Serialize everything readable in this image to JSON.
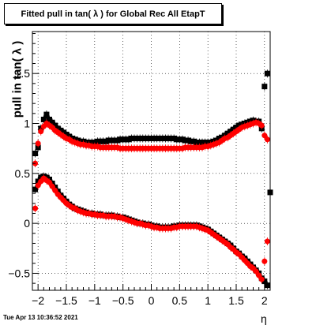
{
  "title": "Fitted pull in tan( λ ) for Global Rec All EtapT",
  "ylabel": "pull in tan( λ )",
  "xlabel": "η",
  "timestamp": "Tue Apr 13 10:36:52 2021",
  "chart_data": {
    "type": "scatter",
    "title": "Fitted pull in tan( λ ) for Global Rec All EtapT",
    "xlabel": "η",
    "ylabel": "pull in tan( λ )",
    "xlim": [
      -2.1,
      2.1
    ],
    "ylim": [
      -0.67,
      1.92
    ],
    "grid": true,
    "x_ticks": [
      -2,
      -1.5,
      -1,
      -0.5,
      0,
      0.5,
      1,
      1.5,
      2
    ],
    "x_tick_labels": [
      "−2",
      "−1.5",
      "−1",
      "−0.5",
      "0",
      "0.5",
      "1",
      "1.5",
      "2"
    ],
    "y_ticks": [
      -0.5,
      0,
      0.5,
      1,
      1.5
    ],
    "y_tick_labels": [
      "−0.5",
      "0",
      "0.5",
      "1",
      "1.5"
    ],
    "colors": {
      "black_series": "#000000",
      "red_series": "#ff0000"
    },
    "series": [
      {
        "color": "black",
        "marker": "square",
        "x": [
          -2.05,
          -2.0,
          -1.95,
          -1.9,
          -1.85,
          -1.8,
          -1.75,
          -1.7,
          -1.65,
          -1.6,
          -1.55,
          -1.5,
          -1.45,
          -1.4,
          -1.35,
          -1.3,
          -1.25,
          -1.2,
          -1.15,
          -1.1,
          -1.05,
          -1.0,
          -0.95,
          -0.9,
          -0.85,
          -0.8,
          -0.75,
          -0.7,
          -0.65,
          -0.6,
          -0.55,
          -0.5,
          -0.45,
          -0.4,
          -0.35,
          -0.3,
          -0.25,
          -0.2,
          -0.15,
          -0.1,
          -0.05,
          0.0,
          0.05,
          0.1,
          0.15,
          0.2,
          0.25,
          0.3,
          0.35,
          0.4,
          0.45,
          0.5,
          0.55,
          0.6,
          0.65,
          0.7,
          0.75,
          0.8,
          0.85,
          0.9,
          0.95,
          1.0,
          1.05,
          1.1,
          1.15,
          1.2,
          1.25,
          1.3,
          1.35,
          1.4,
          1.45,
          1.5,
          1.55,
          1.6,
          1.65,
          1.7,
          1.75,
          1.8,
          1.85,
          1.9,
          1.95,
          2.0,
          2.05
        ],
        "y": [
          0.7,
          0.76,
          0.95,
          1.04,
          1.09,
          1.04,
          1.01,
          0.98,
          0.95,
          0.93,
          0.91,
          0.89,
          0.87,
          0.85,
          0.84,
          0.83,
          0.82,
          0.82,
          0.81,
          0.81,
          0.81,
          0.81,
          0.82,
          0.82,
          0.82,
          0.82,
          0.83,
          0.83,
          0.83,
          0.83,
          0.84,
          0.84,
          0.84,
          0.84,
          0.85,
          0.85,
          0.85,
          0.85,
          0.85,
          0.85,
          0.85,
          0.85,
          0.85,
          0.85,
          0.85,
          0.85,
          0.85,
          0.85,
          0.85,
          0.85,
          0.84,
          0.84,
          0.84,
          0.83,
          0.83,
          0.82,
          0.82,
          0.81,
          0.81,
          0.81,
          0.81,
          0.81,
          0.81,
          0.82,
          0.83,
          0.85,
          0.86,
          0.88,
          0.9,
          0.92,
          0.94,
          0.96,
          0.98,
          0.99,
          1.0,
          1.01,
          1.02,
          1.03,
          1.02,
          1.02,
          0.95,
          1.37,
          1.5
        ]
      },
      {
        "color": "red",
        "marker": "circle",
        "x": [
          -2.05,
          -2.0,
          -1.95,
          -1.9,
          -1.85,
          -1.8,
          -1.75,
          -1.7,
          -1.65,
          -1.6,
          -1.55,
          -1.5,
          -1.45,
          -1.4,
          -1.35,
          -1.3,
          -1.25,
          -1.2,
          -1.15,
          -1.1,
          -1.05,
          -1.0,
          -0.95,
          -0.9,
          -0.85,
          -0.8,
          -0.75,
          -0.7,
          -0.65,
          -0.6,
          -0.55,
          -0.5,
          -0.45,
          -0.4,
          -0.35,
          -0.3,
          -0.25,
          -0.2,
          -0.15,
          -0.1,
          -0.05,
          0.0,
          0.05,
          0.1,
          0.15,
          0.2,
          0.25,
          0.3,
          0.35,
          0.4,
          0.45,
          0.5,
          0.55,
          0.6,
          0.65,
          0.7,
          0.75,
          0.8,
          0.85,
          0.9,
          0.95,
          1.0,
          1.05,
          1.1,
          1.15,
          1.2,
          1.25,
          1.3,
          1.35,
          1.4,
          1.45,
          1.5,
          1.55,
          1.6,
          1.65,
          1.7,
          1.75,
          1.8,
          1.85,
          1.9,
          1.95,
          2.0,
          2.05
        ],
        "y": [
          0.6,
          0.8,
          0.92,
          0.97,
          1.0,
          0.98,
          0.96,
          0.93,
          0.91,
          0.89,
          0.87,
          0.85,
          0.84,
          0.82,
          0.81,
          0.8,
          0.79,
          0.79,
          0.78,
          0.78,
          0.77,
          0.77,
          0.77,
          0.76,
          0.76,
          0.76,
          0.76,
          0.76,
          0.76,
          0.76,
          0.75,
          0.75,
          0.75,
          0.75,
          0.75,
          0.75,
          0.75,
          0.75,
          0.75,
          0.75,
          0.75,
          0.75,
          0.75,
          0.75,
          0.75,
          0.75,
          0.75,
          0.75,
          0.75,
          0.75,
          0.75,
          0.75,
          0.75,
          0.76,
          0.76,
          0.76,
          0.76,
          0.76,
          0.76,
          0.76,
          0.77,
          0.77,
          0.78,
          0.79,
          0.8,
          0.81,
          0.83,
          0.85,
          0.86,
          0.88,
          0.9,
          0.92,
          0.94,
          0.96,
          0.97,
          0.98,
          0.99,
          1.0,
          1.01,
          1.0,
          0.98,
          0.88,
          0.84
        ]
      },
      {
        "color": "black",
        "marker": "square",
        "x": [
          -2.05,
          -2.0,
          -1.95,
          -1.9,
          -1.85,
          -1.8,
          -1.75,
          -1.7,
          -1.65,
          -1.6,
          -1.55,
          -1.5,
          -1.45,
          -1.4,
          -1.35,
          -1.3,
          -1.25,
          -1.2,
          -1.15,
          -1.1,
          -1.05,
          -1.0,
          -0.95,
          -0.9,
          -0.85,
          -0.8,
          -0.75,
          -0.7,
          -0.65,
          -0.6,
          -0.55,
          -0.5,
          -0.45,
          -0.4,
          -0.35,
          -0.3,
          -0.25,
          -0.2,
          -0.15,
          -0.1,
          -0.05,
          0.0,
          0.05,
          0.1,
          0.15,
          0.2,
          0.25,
          0.3,
          0.35,
          0.4,
          0.45,
          0.5,
          0.55,
          0.6,
          0.65,
          0.7,
          0.75,
          0.8,
          0.85,
          0.9,
          0.95,
          1.0,
          1.05,
          1.1,
          1.15,
          1.2,
          1.25,
          1.3,
          1.35,
          1.4,
          1.45,
          1.5,
          1.55,
          1.6,
          1.65,
          1.7,
          1.75,
          1.8,
          1.85,
          1.9,
          1.95,
          2.0,
          2.05,
          2.1
        ],
        "y": [
          0.34,
          0.42,
          0.46,
          0.47,
          0.46,
          0.44,
          0.4,
          0.36,
          0.32,
          0.28,
          0.25,
          0.22,
          0.19,
          0.17,
          0.15,
          0.14,
          0.13,
          0.12,
          0.11,
          0.1,
          0.1,
          0.09,
          0.09,
          0.09,
          0.08,
          0.08,
          0.08,
          0.08,
          0.07,
          0.07,
          0.06,
          0.06,
          0.05,
          0.04,
          0.03,
          0.02,
          0.01,
          0.0,
          0.0,
          -0.01,
          -0.01,
          -0.02,
          -0.03,
          -0.03,
          -0.04,
          -0.04,
          -0.04,
          -0.04,
          -0.04,
          -0.03,
          -0.03,
          -0.02,
          -0.02,
          -0.02,
          -0.02,
          -0.02,
          -0.02,
          -0.02,
          -0.03,
          -0.04,
          -0.05,
          -0.06,
          -0.08,
          -0.1,
          -0.12,
          -0.14,
          -0.16,
          -0.18,
          -0.2,
          -0.22,
          -0.25,
          -0.28,
          -0.3,
          -0.33,
          -0.35,
          -0.38,
          -0.41,
          -0.44,
          -0.47,
          -0.5,
          -0.55,
          -0.58,
          -0.62,
          0.31
        ]
      },
      {
        "color": "red",
        "marker": "circle",
        "x": [
          -2.05,
          -2.0,
          -1.95,
          -1.9,
          -1.85,
          -1.8,
          -1.75,
          -1.7,
          -1.65,
          -1.6,
          -1.55,
          -1.5,
          -1.45,
          -1.4,
          -1.35,
          -1.3,
          -1.25,
          -1.2,
          -1.15,
          -1.1,
          -1.05,
          -1.0,
          -0.95,
          -0.9,
          -0.85,
          -0.8,
          -0.75,
          -0.7,
          -0.65,
          -0.6,
          -0.55,
          -0.5,
          -0.45,
          -0.4,
          -0.35,
          -0.3,
          -0.25,
          -0.2,
          -0.15,
          -0.1,
          -0.05,
          0.0,
          0.05,
          0.1,
          0.15,
          0.2,
          0.25,
          0.3,
          0.35,
          0.4,
          0.45,
          0.5,
          0.55,
          0.6,
          0.65,
          0.7,
          0.75,
          0.8,
          0.85,
          0.9,
          0.95,
          1.0,
          1.05,
          1.1,
          1.15,
          1.2,
          1.25,
          1.3,
          1.35,
          1.4,
          1.45,
          1.5,
          1.55,
          1.6,
          1.65,
          1.7,
          1.75,
          1.8,
          1.85,
          1.9,
          1.95,
          2.0,
          2.05
        ],
        "y": [
          0.15,
          0.38,
          0.42,
          0.45,
          0.43,
          0.41,
          0.37,
          0.33,
          0.29,
          0.26,
          0.23,
          0.2,
          0.18,
          0.16,
          0.15,
          0.13,
          0.12,
          0.11,
          0.1,
          0.1,
          0.09,
          0.09,
          0.08,
          0.08,
          0.08,
          0.07,
          0.07,
          0.07,
          0.07,
          0.06,
          0.06,
          0.05,
          0.04,
          0.03,
          0.02,
          0.01,
          0.0,
          0.0,
          -0.01,
          -0.02,
          -0.02,
          -0.03,
          -0.04,
          -0.04,
          -0.05,
          -0.05,
          -0.05,
          -0.05,
          -0.05,
          -0.04,
          -0.04,
          -0.03,
          -0.03,
          -0.03,
          -0.03,
          -0.03,
          -0.03,
          -0.03,
          -0.04,
          -0.05,
          -0.06,
          -0.07,
          -0.09,
          -0.11,
          -0.13,
          -0.15,
          -0.17,
          -0.19,
          -0.21,
          -0.24,
          -0.26,
          -0.29,
          -0.31,
          -0.34,
          -0.37,
          -0.4,
          -0.43,
          -0.45,
          -0.48,
          -0.52,
          -0.56,
          -0.38,
          -0.18
        ]
      }
    ]
  }
}
